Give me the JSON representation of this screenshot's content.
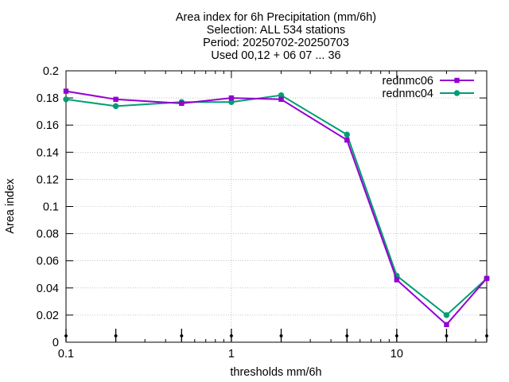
{
  "chart_data": {
    "type": "line",
    "title_lines": [
      "Area index  for 6h Precipitation (mm/6h)",
      "Selection: ALL    534 stations",
      "Period: 20250702-20250703",
      "Used 00,12 + 06 07 ... 36"
    ],
    "xlabel": "thresholds mm/6h",
    "ylabel": "Area index",
    "x_scale": "log",
    "xlim": [
      0.1,
      35
    ],
    "ylim": [
      0,
      0.2
    ],
    "grid": true,
    "legend_position": "top-right",
    "x_tick_values": [
      0.1,
      1,
      10
    ],
    "x_tick_labels": [
      "0.1",
      "1",
      "10"
    ],
    "y_tick_values": [
      0,
      0.02,
      0.04,
      0.06,
      0.08,
      0.1,
      0.12,
      0.14,
      0.16,
      0.18,
      0.2
    ],
    "y_tick_labels": [
      "0",
      "0.02",
      "0.04",
      "0.06",
      "0.08",
      "0.1",
      "0.12",
      "0.14",
      "0.16",
      "0.18",
      "0.2"
    ],
    "x": [
      0.1,
      0.2,
      0.5,
      1,
      2,
      5,
      10,
      20,
      35
    ],
    "series": [
      {
        "name": "rednmc06",
        "color": "#9400d3",
        "marker": "square",
        "values": [
          0.185,
          0.179,
          0.176,
          0.18,
          0.179,
          0.149,
          0.046,
          0.013,
          0.047
        ]
      },
      {
        "name": "rednmc04",
        "color": "#009e73",
        "marker": "circle",
        "values": [
          0.179,
          0.174,
          0.177,
          0.177,
          0.182,
          0.153,
          0.049,
          0.02,
          0.047
        ]
      }
    ],
    "station_markers_x": [
      0.1,
      0.2,
      0.5,
      1,
      2,
      5,
      10,
      20,
      35
    ]
  }
}
